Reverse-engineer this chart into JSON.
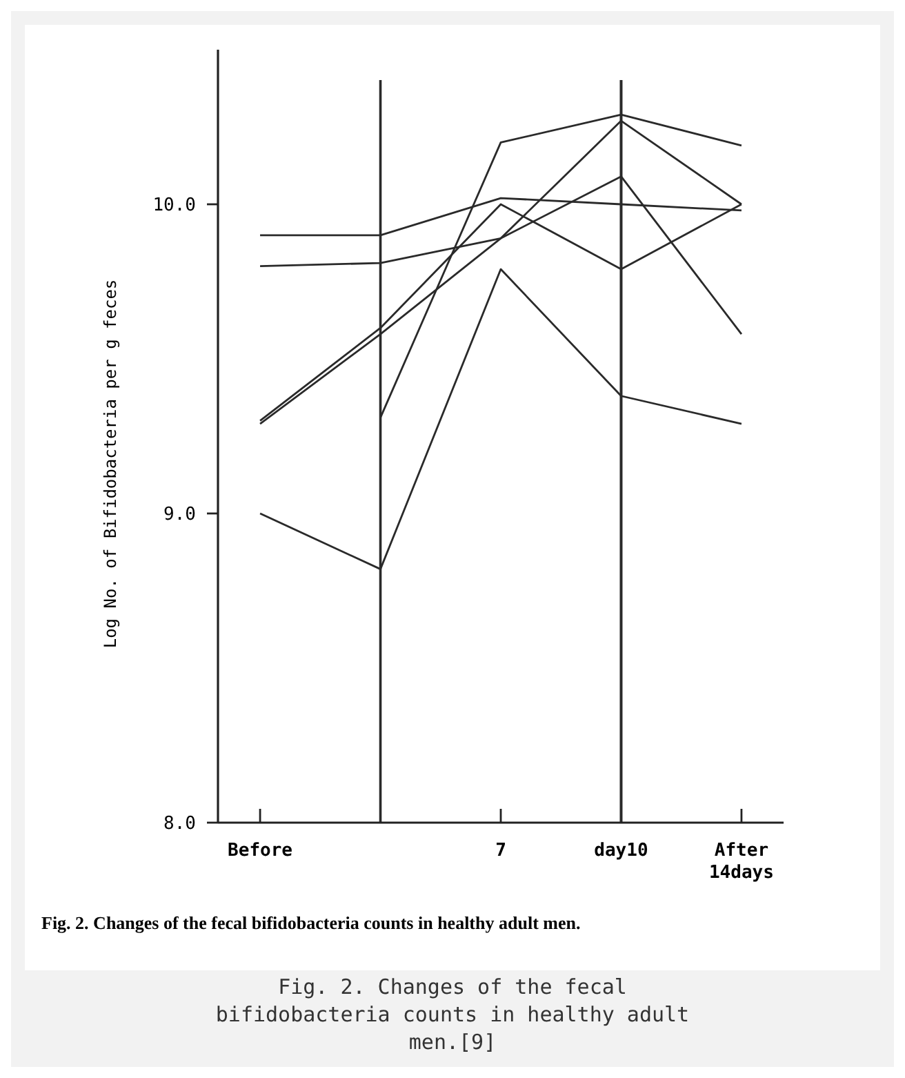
{
  "chart_data": {
    "type": "line",
    "ylabel": "Log No. of Bifidobacteria per g feces",
    "categories": [
      "Before",
      null,
      "7",
      "day10",
      "After\n14days"
    ],
    "ylim": [
      8.0,
      10.5
    ],
    "yticks": [
      {
        "value": 8,
        "label": "8.0"
      },
      {
        "value": 9,
        "label": "9.0"
      },
      {
        "value": 10,
        "label": "10.0"
      }
    ],
    "series": [
      {
        "color": "#2a2a2a",
        "values": [
          9.9,
          9.9,
          10.02,
          10.0,
          9.98
        ]
      },
      {
        "color": "#2a2a2a",
        "values": [
          9.8,
          9.81,
          9.89,
          10.27,
          10.0
        ]
      },
      {
        "color": "#2a2a2a",
        "values": [
          9.3,
          9.6,
          10.0,
          9.79,
          10.0
        ]
      },
      {
        "color": "#2a2a2a",
        "values": [
          9.29,
          9.58,
          9.89,
          10.09,
          9.58
        ]
      },
      {
        "color": "#2a2a2a",
        "values": [
          null,
          9.31,
          10.2,
          10.29,
          10.19
        ]
      },
      {
        "color": "#2a2a2a",
        "values": [
          9.0,
          8.82,
          9.79,
          9.38,
          9.29
        ]
      }
    ],
    "ref_lines": [
      {
        "axis": "x",
        "value": "day10",
        "label": null,
        "color": "#2a2a2a"
      }
    ],
    "annotations": [
      "Fig. 2.  Changes of the fecal bifidobacteria counts in healthy adult men.",
      "Fig. 2. Changes of the fecal bifidobacteria counts in healthy adult men.[9]"
    ],
    "marker": "none",
    "line_style": "solid"
  }
}
